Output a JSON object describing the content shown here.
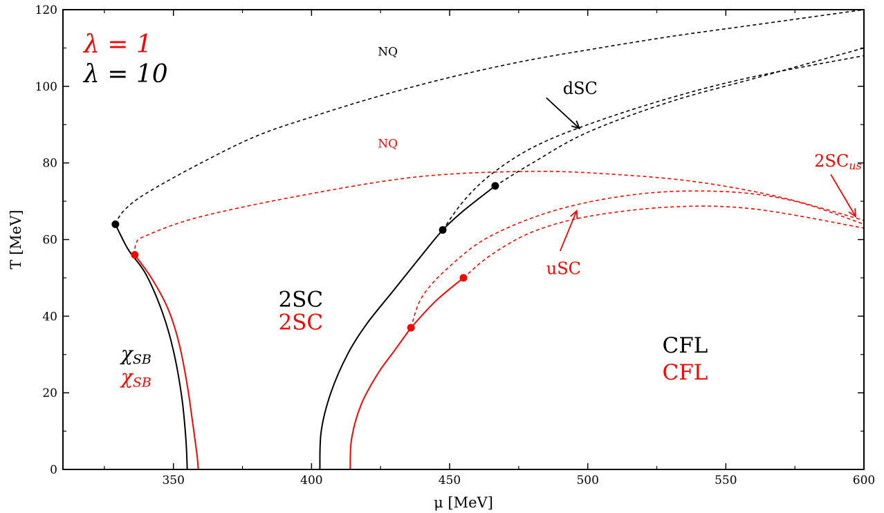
{
  "chart_data": {
    "type": "line",
    "xlabel": "μ [MeV]",
    "ylabel": "T [MeV]",
    "xlim": [
      310,
      600
    ],
    "ylim": [
      0,
      120
    ],
    "xticks": [
      350,
      400,
      450,
      500,
      550,
      600
    ],
    "yticks": [
      0,
      20,
      40,
      60,
      80,
      100,
      120
    ],
    "grid": false,
    "legend": [
      {
        "text": "λ = 1",
        "color": "#ff0000"
      },
      {
        "text": "λ = 10",
        "color": "#000000"
      }
    ],
    "series": [
      {
        "color": "#000000",
        "style": "dashed",
        "points": [
          [
            329,
            64
          ],
          [
            332,
            67.5
          ],
          [
            340,
            72
          ],
          [
            360,
            80
          ],
          [
            380,
            87
          ],
          [
            400,
            92
          ],
          [
            420,
            96.5
          ],
          [
            440,
            100.5
          ],
          [
            460,
            104
          ],
          [
            480,
            107
          ],
          [
            500,
            109.5
          ],
          [
            530,
            113
          ],
          [
            560,
            116
          ],
          [
            600,
            120
          ]
        ]
      },
      {
        "color": "#000000",
        "style": "solid",
        "points": [
          [
            329,
            64
          ],
          [
            331,
            61
          ],
          [
            334,
            57
          ],
          [
            340,
            51
          ],
          [
            346,
            41
          ],
          [
            350,
            31
          ],
          [
            353,
            19
          ],
          [
            354.5,
            8
          ],
          [
            355,
            0
          ]
        ]
      },
      {
        "color": "#ff0000",
        "style": "dashed",
        "points": [
          [
            336,
            56
          ],
          [
            336.5,
            59
          ],
          [
            340,
            61
          ],
          [
            360,
            66
          ],
          [
            400,
            72
          ],
          [
            440,
            76.5
          ],
          [
            480,
            77.8
          ],
          [
            510,
            77
          ],
          [
            540,
            75
          ],
          [
            570,
            71
          ],
          [
            600,
            65
          ]
        ]
      },
      {
        "color": "#ff0000",
        "style": "solid",
        "points": [
          [
            336,
            56
          ],
          [
            342,
            50
          ],
          [
            348,
            42
          ],
          [
            352,
            33
          ],
          [
            355,
            22
          ],
          [
            357,
            12
          ],
          [
            358.5,
            4
          ],
          [
            359,
            0
          ]
        ]
      },
      {
        "color": "#000000",
        "style": "solid",
        "points": [
          [
            403,
            0
          ],
          [
            403.5,
            10
          ],
          [
            407,
            20
          ],
          [
            413,
            30
          ],
          [
            420,
            38
          ],
          [
            430,
            47
          ],
          [
            440,
            56
          ],
          [
            447.5,
            62.5
          ],
          [
            455,
            67.5
          ],
          [
            466.5,
            74
          ]
        ]
      },
      {
        "color": "#000000",
        "style": "dashed",
        "points": [
          [
            447.5,
            62.5
          ],
          [
            455,
            70
          ],
          [
            465,
            77
          ],
          [
            480,
            84
          ],
          [
            500,
            90
          ],
          [
            530,
            97
          ],
          [
            560,
            102.5
          ],
          [
            600,
            108
          ]
        ]
      },
      {
        "color": "#000000",
        "style": "dashed",
        "points": [
          [
            466.5,
            74
          ],
          [
            480,
            80
          ],
          [
            500,
            88
          ],
          [
            530,
            96
          ],
          [
            560,
            102
          ],
          [
            600,
            110
          ]
        ]
      },
      {
        "color": "#ff0000",
        "style": "solid",
        "points": [
          [
            414,
            0
          ],
          [
            414.5,
            8
          ],
          [
            418,
            17
          ],
          [
            424,
            25
          ],
          [
            430,
            31
          ],
          [
            436,
            37
          ]
        ]
      },
      {
        "color": "#ff0000",
        "style": "dashed",
        "points": [
          [
            436,
            37
          ],
          [
            440,
            45
          ],
          [
            450,
            53
          ],
          [
            465,
            61
          ],
          [
            490,
            68
          ],
          [
            520,
            72
          ],
          [
            550,
            72.5
          ],
          [
            575,
            70
          ],
          [
            600,
            64
          ]
        ]
      },
      {
        "color": "#ff0000",
        "style": "solid",
        "points": [
          [
            436,
            37
          ],
          [
            445,
            44
          ],
          [
            455,
            50
          ]
        ]
      },
      {
        "color": "#ff0000",
        "style": "dashed",
        "points": [
          [
            455,
            50
          ],
          [
            465,
            56
          ],
          [
            480,
            62
          ],
          [
            500,
            66
          ],
          [
            530,
            68.5
          ],
          [
            560,
            68
          ],
          [
            600,
            63
          ]
        ]
      }
    ],
    "markers": [
      {
        "x": 329,
        "y": 64,
        "color": "#000000"
      },
      {
        "x": 447.5,
        "y": 62.5,
        "color": "#000000"
      },
      {
        "x": 466.5,
        "y": 74,
        "color": "#000000"
      },
      {
        "x": 336,
        "y": 56,
        "color": "#ff0000"
      },
      {
        "x": 436,
        "y": 37,
        "color": "#ff0000"
      },
      {
        "x": 455,
        "y": 50,
        "color": "#ff0000"
      }
    ],
    "annotations": [
      {
        "text": "NQ",
        "x": 424,
        "y": 108,
        "color": "#000000",
        "size": 17
      },
      {
        "text": "NQ",
        "x": 424,
        "y": 84,
        "color": "#ff0000",
        "size": 17
      },
      {
        "text": "dSC",
        "x": 491,
        "y": 98,
        "color": "#000000",
        "size": 24
      },
      {
        "text": "2SC",
        "x": 388,
        "y": 42.5,
        "color": "#000000",
        "size": 31
      },
      {
        "text": "2SC",
        "x": 388,
        "y": 36.5,
        "color": "#ff0000",
        "size": 31
      },
      {
        "text": "χ",
        "sub": "SB",
        "x": 331,
        "y": 28.5,
        "color": "#000000",
        "size": 28
      },
      {
        "text": "χ",
        "sub": "SB",
        "x": 331,
        "y": 22.5,
        "color": "#ff0000",
        "size": 28
      },
      {
        "text": "CFL",
        "x": 527,
        "y": 30.5,
        "color": "#000000",
        "size": 31
      },
      {
        "text": "CFL",
        "x": 527,
        "y": 23.5,
        "color": "#ff0000",
        "size": 31
      },
      {
        "text": "uSC",
        "x": 485,
        "y": 51,
        "color": "#ff0000",
        "size": 24
      },
      {
        "text": "2SC",
        "sub": "us",
        "x": 582,
        "y": 79,
        "color": "#ff0000",
        "size": 24
      }
    ],
    "arrows": [
      {
        "from": [
          485,
          97
        ],
        "to": [
          497,
          89
        ],
        "color": "#000000"
      },
      {
        "from": [
          490,
          57
        ],
        "to": [
          496,
          67.5
        ],
        "color": "#ff0000"
      },
      {
        "from": [
          588,
          77
        ],
        "to": [
          597,
          66
        ],
        "color": "#ff0000"
      }
    ]
  }
}
